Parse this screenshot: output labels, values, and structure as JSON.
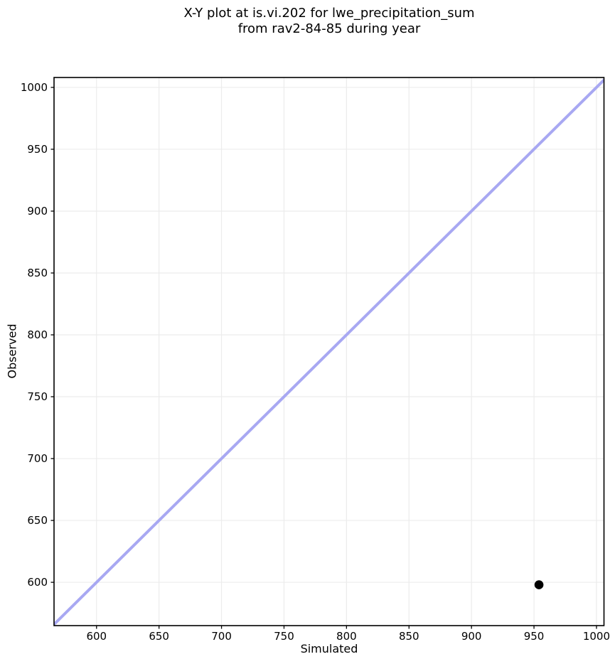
{
  "figure": {
    "background": "#ffffff",
    "title_lines": [
      "X-Y plot at is.vi.202 for lwe_precipitation_sum",
      "from rav2-84-85 during year"
    ]
  },
  "chart_data": {
    "type": "scatter",
    "title": "X-Y plot at is.vi.202 for lwe_precipitation_sum from rav2-84-85 during year",
    "xlabel": "Simulated",
    "ylabel": "Observed",
    "xlim": [
      566,
      1006
    ],
    "ylim": [
      565,
      1008
    ],
    "xticks": [
      600,
      650,
      700,
      750,
      800,
      850,
      900,
      950,
      1000
    ],
    "yticks": [
      600,
      650,
      700,
      750,
      800,
      850,
      900,
      950,
      1000
    ],
    "grid": true,
    "legend": "none",
    "series": [
      {
        "name": "identity-line",
        "kind": "line",
        "x": [
          565,
          1008
        ],
        "y": [
          565,
          1008
        ],
        "color": "#a8a8f2",
        "line_width": 4
      },
      {
        "name": "observed-vs-simulated",
        "kind": "scatter",
        "points": [
          {
            "x": 954,
            "y": 598
          }
        ],
        "color": "#000000",
        "marker_radius": 6.3
      }
    ],
    "colors": {
      "grid": "#ececec",
      "spine": "#000000",
      "tick": "#000000",
      "text": "#000000"
    }
  }
}
